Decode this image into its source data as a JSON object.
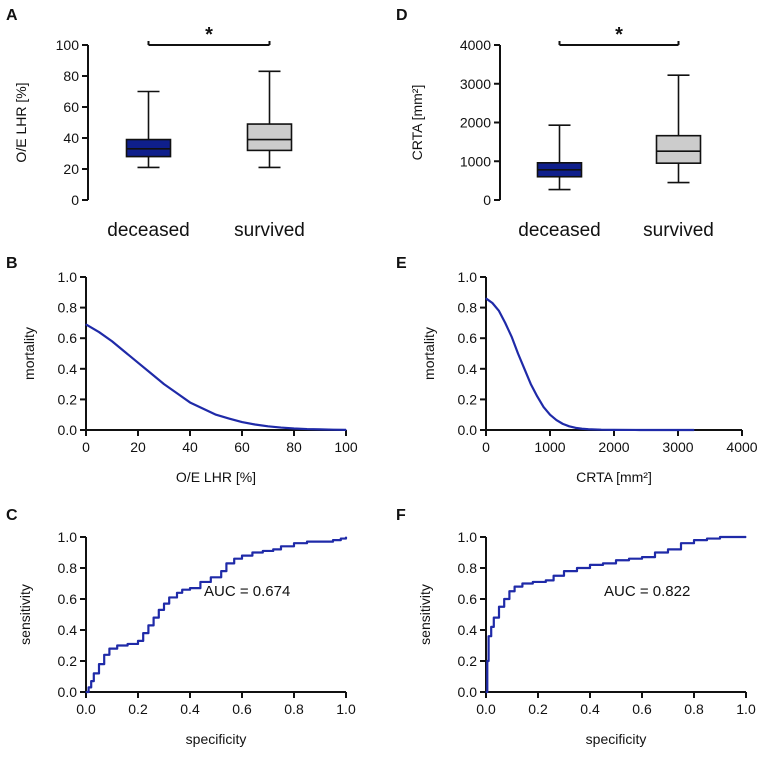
{
  "colors": {
    "deceased": "#0f1f8c",
    "survived": "#cccccc",
    "curve": "#1f2aa8",
    "axis": "#111111"
  },
  "chart_data": [
    {
      "panel": "A",
      "type": "boxplot",
      "ylabel": "O/E LHR [%]",
      "ylim": [
        0,
        100
      ],
      "yticks": [
        "0",
        "20",
        "40",
        "60",
        "80",
        "100"
      ],
      "categories": [
        "deceased",
        "survived"
      ],
      "boxes": [
        {
          "name": "deceased",
          "min": 21,
          "q1": 28,
          "median": 33,
          "q3": 39,
          "max": 70
        },
        {
          "name": "survived",
          "min": 21,
          "q1": 32,
          "median": 39,
          "q3": 49,
          "max": 83
        }
      ],
      "significance": "*"
    },
    {
      "panel": "D",
      "type": "boxplot",
      "ylabel": "CRTA [mm²]",
      "ylim": [
        0,
        4000
      ],
      "yticks": [
        "0",
        "1000",
        "2000",
        "3000",
        "4000"
      ],
      "categories": [
        "deceased",
        "survived"
      ],
      "boxes": [
        {
          "name": "deceased",
          "min": 270,
          "q1": 600,
          "median": 780,
          "q3": 960,
          "max": 1930
        },
        {
          "name": "survived",
          "min": 450,
          "q1": 950,
          "median": 1260,
          "q3": 1660,
          "max": 3220
        }
      ],
      "significance": "*"
    },
    {
      "panel": "B",
      "type": "line",
      "xlabel": "O/E LHR [%]",
      "ylabel": "mortality",
      "xlim": [
        0,
        100
      ],
      "ylim": [
        0,
        1
      ],
      "xticks": [
        "0",
        "20",
        "40",
        "60",
        "80",
        "100"
      ],
      "yticks": [
        "0.0",
        "0.2",
        "0.4",
        "0.6",
        "0.8",
        "1.0"
      ],
      "x": [
        0,
        5,
        10,
        15,
        20,
        25,
        30,
        35,
        40,
        45,
        50,
        55,
        60,
        65,
        70,
        75,
        80,
        85,
        90,
        95,
        100
      ],
      "y": [
        0.69,
        0.64,
        0.58,
        0.51,
        0.44,
        0.37,
        0.3,
        0.24,
        0.18,
        0.14,
        0.1,
        0.075,
        0.052,
        0.036,
        0.024,
        0.016,
        0.01,
        0.006,
        0.004,
        0.002,
        0.001
      ]
    },
    {
      "panel": "E",
      "type": "line",
      "xlabel": "CRTA [mm²]",
      "ylabel": "mortality",
      "xlim": [
        0,
        4000
      ],
      "ylim": [
        0,
        1
      ],
      "xticks": [
        "0",
        "1000",
        "2000",
        "3000",
        "4000"
      ],
      "yticks": [
        "0.0",
        "0.2",
        "0.4",
        "0.6",
        "0.8",
        "1.0"
      ],
      "x": [
        0,
        100,
        200,
        300,
        400,
        500,
        600,
        700,
        800,
        900,
        1000,
        1100,
        1200,
        1300,
        1400,
        1500,
        1600,
        1800,
        2000,
        2400,
        2800,
        3250
      ],
      "y": [
        0.86,
        0.83,
        0.78,
        0.7,
        0.61,
        0.5,
        0.4,
        0.3,
        0.22,
        0.15,
        0.1,
        0.065,
        0.04,
        0.024,
        0.014,
        0.008,
        0.005,
        0.002,
        0.001,
        0.0002,
        0.0001,
        0.0
      ]
    },
    {
      "panel": "C",
      "type": "line",
      "step": true,
      "xlabel": "specificity",
      "ylabel": "sensitivity",
      "xlim": [
        0,
        1
      ],
      "ylim": [
        0,
        1
      ],
      "xticks": [
        "0.0",
        "0.2",
        "0.4",
        "0.6",
        "0.8",
        "1.0"
      ],
      "yticks": [
        "0.0",
        "0.2",
        "0.4",
        "0.6",
        "0.8",
        "1.0"
      ],
      "annotation": "AUC = 0.674",
      "x": [
        0,
        0.01,
        0.02,
        0.03,
        0.05,
        0.07,
        0.09,
        0.12,
        0.16,
        0.2,
        0.22,
        0.24,
        0.26,
        0.28,
        0.3,
        0.32,
        0.35,
        0.37,
        0.4,
        0.44,
        0.48,
        0.52,
        0.54,
        0.57,
        0.6,
        0.64,
        0.68,
        0.72,
        0.75,
        0.8,
        0.85,
        0.9,
        0.95,
        0.98,
        1.0
      ],
      "y": [
        0,
        0.03,
        0.07,
        0.12,
        0.18,
        0.24,
        0.28,
        0.3,
        0.31,
        0.33,
        0.38,
        0.43,
        0.48,
        0.53,
        0.57,
        0.61,
        0.64,
        0.66,
        0.67,
        0.71,
        0.74,
        0.78,
        0.83,
        0.86,
        0.88,
        0.9,
        0.91,
        0.92,
        0.94,
        0.96,
        0.97,
        0.97,
        0.98,
        0.99,
        1.0
      ]
    },
    {
      "panel": "F",
      "type": "line",
      "step": true,
      "xlabel": "specificity",
      "ylabel": "sensitivity",
      "xlim": [
        0,
        1
      ],
      "ylim": [
        0,
        1
      ],
      "xticks": [
        "0.0",
        "0.2",
        "0.4",
        "0.6",
        "0.8",
        "1.0"
      ],
      "yticks": [
        "0.0",
        "0.2",
        "0.4",
        "0.6",
        "0.8",
        "1.0"
      ],
      "annotation": "AUC = 0.822",
      "x": [
        0,
        0.005,
        0.01,
        0.02,
        0.03,
        0.05,
        0.07,
        0.09,
        0.11,
        0.14,
        0.18,
        0.23,
        0.26,
        0.3,
        0.35,
        0.4,
        0.45,
        0.5,
        0.55,
        0.6,
        0.65,
        0.7,
        0.75,
        0.8,
        0.85,
        0.9,
        1.0
      ],
      "y": [
        0,
        0.2,
        0.36,
        0.42,
        0.48,
        0.55,
        0.6,
        0.65,
        0.68,
        0.7,
        0.71,
        0.72,
        0.75,
        0.78,
        0.8,
        0.82,
        0.83,
        0.85,
        0.86,
        0.87,
        0.9,
        0.92,
        0.96,
        0.98,
        0.99,
        1.0,
        1.0
      ]
    }
  ]
}
